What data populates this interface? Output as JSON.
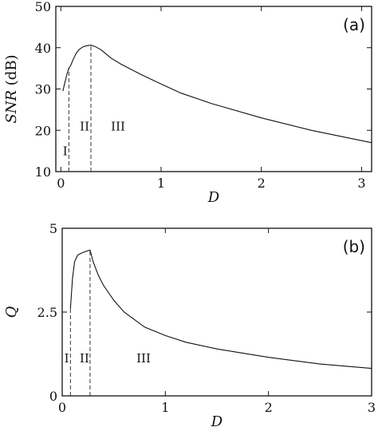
{
  "chart_data": [
    {
      "type": "line",
      "panel_label": "(a)",
      "xlabel": "D",
      "ylabel_italic": "SNR",
      "ylabel_unit": " (dB)",
      "xlim": [
        -0.05,
        3.1
      ],
      "ylim": [
        10,
        50
      ],
      "xticks": [
        0,
        1,
        2,
        3
      ],
      "yticks": [
        10,
        20,
        30,
        40,
        50
      ],
      "dividers": [
        0.08,
        0.3
      ],
      "regions": [
        {
          "label": "I",
          "x": 0.02,
          "y": 14
        },
        {
          "label": "II",
          "x": 0.19,
          "y": 20
        },
        {
          "label": "III",
          "x": 0.5,
          "y": 20
        }
      ],
      "series": [
        {
          "x": [
            0.02,
            0.04,
            0.06,
            0.08,
            0.1,
            0.12,
            0.15,
            0.18,
            0.22,
            0.26,
            0.3,
            0.34,
            0.4,
            0.5,
            0.6,
            0.8,
            1.0,
            1.2,
            1.5,
            2.0,
            2.5,
            3.1
          ],
          "y": [
            29.5,
            31.5,
            33.5,
            35.0,
            35.8,
            37.0,
            38.5,
            39.5,
            40.2,
            40.5,
            40.6,
            40.3,
            39.5,
            37.5,
            36.0,
            33.5,
            31.2,
            29.0,
            26.5,
            23.0,
            20.0,
            17.0
          ]
        }
      ]
    },
    {
      "type": "line",
      "panel_label": "(b)",
      "xlabel": "D",
      "ylabel_italic": "Q",
      "ylabel_unit": "",
      "xlim": [
        0,
        3
      ],
      "ylim": [
        0,
        5
      ],
      "xticks": [
        0,
        1,
        2,
        3
      ],
      "yticks": [
        0,
        2.5,
        5
      ],
      "dividers": [
        0.08,
        0.27
      ],
      "regions": [
        {
          "label": "I",
          "x": 0.02,
          "y": 1.0
        },
        {
          "label": "II",
          "x": 0.17,
          "y": 1.0
        },
        {
          "label": "III",
          "x": 0.72,
          "y": 1.0
        }
      ],
      "series": [
        {
          "x": [
            0.08,
            0.1,
            0.12,
            0.15,
            0.18,
            0.22,
            0.27,
            0.3,
            0.35,
            0.4,
            0.5,
            0.6,
            0.8,
            1.0,
            1.2,
            1.5,
            2.0,
            2.5,
            3.0
          ],
          "y": [
            2.6,
            3.5,
            4.0,
            4.2,
            4.25,
            4.3,
            4.35,
            4.0,
            3.6,
            3.3,
            2.85,
            2.5,
            2.05,
            1.8,
            1.6,
            1.4,
            1.15,
            0.95,
            0.82
          ]
        }
      ]
    }
  ]
}
